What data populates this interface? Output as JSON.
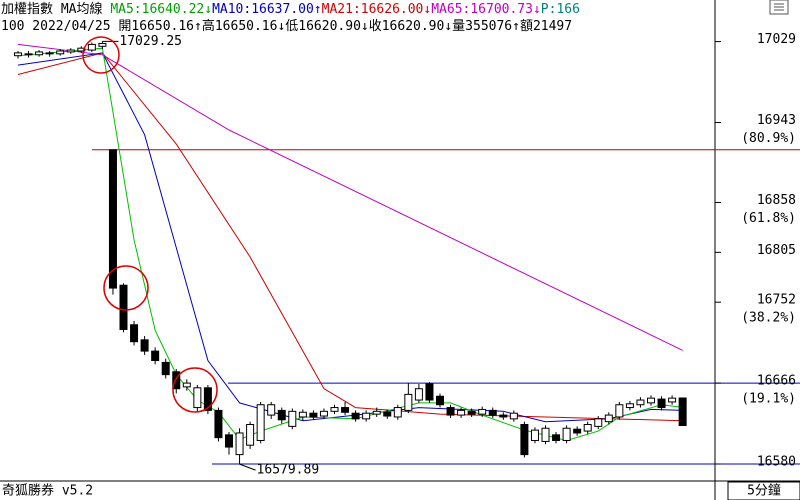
{
  "chart_data": {
    "type": "candlestick",
    "header": [
      [
        {
          "text": "加權指數 MA均線 ",
          "color": "#000000"
        },
        {
          "text": "MA5:16640.22↓",
          "color": "#00a000"
        },
        {
          "text": "MA10:16637.00↑",
          "color": "#0000c0"
        },
        {
          "text": "MA21:16626.00↓",
          "color": "#d00000"
        },
        {
          "text": "MA65:16700.73↓",
          "color": "#c000c0"
        },
        {
          "text": "P:166",
          "color": "#008080"
        }
      ],
      [
        {
          "text": "100 2022/04/25 開16650.16↑高16650.16↓低16620.90↓收16620.90↓量355076↑額21497",
          "color": "#000000"
        }
      ]
    ],
    "open": [
      17014,
      17016,
      17015,
      17017,
      17016,
      17018,
      17019,
      17020,
      17024,
      16914,
      16770,
      16728,
      16712,
      16700,
      16688,
      16678,
      16662,
      16640,
      16661,
      16637,
      16611,
      16590,
      16600,
      16605,
      16632,
      16637,
      16620,
      16630,
      16634,
      16631,
      16636,
      16640,
      16634,
      16628,
      16633,
      16635,
      16630,
      16637,
      16648,
      16665,
      16652,
      16640,
      16632,
      16636,
      16633,
      16637,
      16632,
      16628,
      16622,
      16605,
      16604,
      16611,
      16605,
      16617,
      16615,
      16620,
      16625,
      16630,
      16640,
      16643,
      16645,
      16649,
      16646,
      16650.16
    ],
    "high": [
      17019,
      17019,
      17020,
      17019,
      17021,
      17022,
      17024,
      17028,
      17029.25,
      16914,
      16772,
      16732,
      16716,
      16704,
      16692,
      16681,
      16670,
      16664,
      16664,
      16640,
      16614,
      16618,
      16625,
      16646,
      16646,
      16640,
      16639,
      16638,
      16637,
      16639,
      16643,
      16646,
      16637,
      16637,
      16640,
      16638,
      16643,
      16666,
      16665,
      16667,
      16655,
      16643,
      16640,
      16639,
      16641,
      16640,
      16635,
      16637,
      16625,
      16619,
      16621,
      16614,
      16621,
      16620,
      16625,
      16631,
      16635,
      16646,
      16647,
      16651,
      16653,
      16652,
      16653,
      16650.16
    ],
    "low": [
      17011,
      17012,
      17013,
      17013,
      17014,
      17016,
      17017,
      17018,
      17021,
      16760,
      16720,
      16706,
      16696,
      16686,
      16671,
      16655,
      16658,
      16636,
      16633,
      16604,
      16590,
      16579.89,
      16596,
      16602,
      16628,
      16623,
      16617,
      16626,
      16627,
      16628,
      16633,
      16632,
      16625,
      16625,
      16630,
      16628,
      16627,
      16634,
      16645,
      16645,
      16640,
      16629,
      16629,
      16630,
      16630,
      16629,
      16627,
      16625,
      16587,
      16602,
      16601,
      16602,
      16602,
      16610,
      16612,
      16617,
      16622,
      16627,
      16637,
      16640,
      16642,
      16637,
      16643,
      16620.9
    ],
    "close": [
      17017,
      17015,
      17018,
      17016,
      17019,
      17020,
      17022,
      17026,
      17027,
      16767,
      16723,
      16710,
      16700,
      16690,
      16675,
      16660,
      16666,
      16661,
      16637,
      16608,
      16598,
      16613,
      16622,
      16643,
      16643,
      16627,
      16636,
      16635,
      16630,
      16636,
      16640,
      16635,
      16628,
      16634,
      16636,
      16631,
      16640,
      16654,
      16660,
      16648,
      16643,
      16632,
      16637,
      16633,
      16638,
      16632,
      16630,
      16634,
      16590,
      16616,
      16618,
      16605,
      16618,
      16613,
      16622,
      16628,
      16632,
      16643,
      16644,
      16648,
      16650,
      16640,
      16650,
      16620.9
    ],
    "ma_lines": [
      {
        "color": "#c000c0",
        "x": [
          0,
          8,
          20,
          63
        ],
        "values": [
          17026,
          17015,
          16935,
          16700.73
        ]
      },
      {
        "color": "#d00000",
        "x": [
          0,
          8,
          15,
          22,
          29,
          32,
          40,
          50,
          63
        ],
        "values": [
          16994,
          17017,
          16920,
          16800,
          16660,
          16640,
          16633,
          16630,
          16626.0
        ]
      },
      {
        "color": "#0000c0",
        "x": [
          0,
          8,
          12,
          18,
          21,
          27,
          32,
          38,
          46,
          50,
          56,
          60,
          63
        ],
        "values": [
          17004,
          17017,
          16930,
          16690,
          16645,
          16626,
          16632,
          16640,
          16636,
          16625,
          16628,
          16638,
          16637.0
        ]
      },
      {
        "color": "#00c000",
        "x": [
          0,
          8,
          11,
          13,
          15,
          17,
          19,
          21,
          23,
          27,
          32,
          38,
          41,
          44,
          48,
          52,
          55,
          57,
          61,
          63
        ],
        "values": [
          17014,
          17022,
          16818,
          16722,
          16675,
          16648,
          16635,
          16606,
          16615,
          16630,
          16628,
          16645,
          16645,
          16632,
          16616,
          16605,
          16615,
          16630,
          16643,
          16640.22
        ]
      }
    ],
    "hlines": [
      {
        "value": 16914,
        "color": "#c00000"
      },
      {
        "value": 16666,
        "color": "#0000c0"
      },
      {
        "value": 16580,
        "color": "#0000c0"
      }
    ],
    "ylim": [
      16563,
      17036
    ],
    "yticks": [
      17029,
      16943,
      16858,
      16805,
      16752,
      16666,
      16580
    ],
    "retracement_labels": [
      {
        "value": 16943,
        "label": "(80.9%)"
      },
      {
        "value": 16858,
        "label": "(61.8%)"
      },
      {
        "value": 16752,
        "label": "(38.2%)"
      },
      {
        "value": 16666,
        "label": "(19.1%)"
      }
    ],
    "annotations": [
      {
        "index": 8,
        "value": 17029.25,
        "label": "17029.25"
      },
      {
        "index": 21,
        "value": 16579.89,
        "label": "16579.89"
      }
    ],
    "footer": "奇狐勝券 v5.2",
    "period": "5分鐘"
  }
}
